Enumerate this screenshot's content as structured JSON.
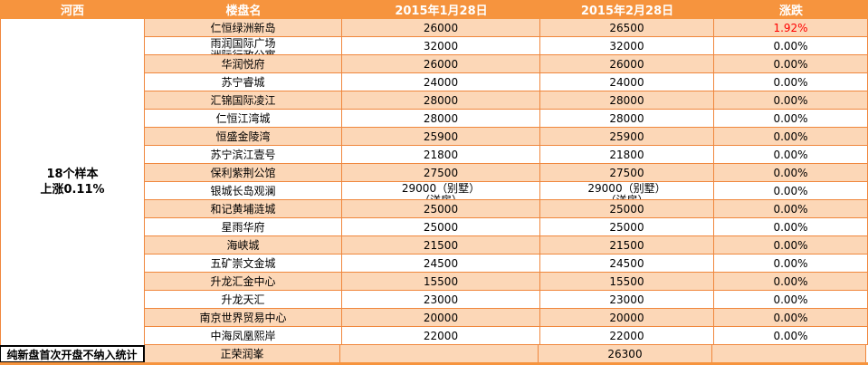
{
  "header": {
    "region": "河西",
    "name": "楼盘名",
    "jan": "2015年1月28日",
    "feb": "2015年2月28日",
    "change": "涨跌"
  },
  "region": {
    "summary_line1": "18个样本",
    "summary_line2": "上涨0.11%",
    "footnote": "纯新盘首次开盘不纳入统计"
  },
  "colors": {
    "header_orange": "#F6943E",
    "grid_orange": "#F0873D",
    "row_peach": "#FCD7B7",
    "row_white": "#FFFFFF",
    "change_up_red": "#FF0000",
    "header_text": "#FFFFFF",
    "body_text": "#000000"
  },
  "table": {
    "rows": [
      {
        "name": "仁恒绿洲新岛",
        "jan": "26000",
        "feb": "26500",
        "change": "1.92%",
        "change_up": true
      },
      {
        "name": "雨润国际广场",
        "name_line2": "洲际行政公寓",
        "jan": "32000",
        "feb": "32000",
        "change": "0.00%"
      },
      {
        "name": "华润悦府",
        "jan": "26000",
        "feb": "26000",
        "change": "0.00%"
      },
      {
        "name": "苏宁睿城",
        "jan": "24000",
        "feb": "24000",
        "change": "0.00%"
      },
      {
        "name": "汇锦国际凌江",
        "jan": "28000",
        "feb": "28000",
        "change": "0.00%"
      },
      {
        "name": "仁恒江湾城",
        "jan": "28000",
        "feb": "28000",
        "change": "0.00%"
      },
      {
        "name": "恒盛金陵湾",
        "jan": "25900",
        "feb": "25900",
        "change": "0.00%"
      },
      {
        "name": "苏宁滨江壹号",
        "jan": "21800",
        "feb": "21800",
        "change": "0.00%"
      },
      {
        "name": "保利紫荆公馆",
        "jan": "27500",
        "feb": "27500",
        "change": "0.00%"
      },
      {
        "name": "银城长岛观澜",
        "jan": "29000（别墅）",
        "jan_line2": "（洋房）",
        "feb": "29000（别墅）",
        "feb_line2": "（洋房）",
        "change": "0.00%"
      },
      {
        "name": "和记黄埔涟城",
        "jan": "25000",
        "feb": "25000",
        "change": "0.00%"
      },
      {
        "name": "星雨华府",
        "jan": "25000",
        "feb": "25000",
        "change": "0.00%"
      },
      {
        "name": "海峡城",
        "jan": "21500",
        "feb": "21500",
        "change": "0.00%"
      },
      {
        "name": "五矿崇文金城",
        "jan": "24500",
        "feb": "24500",
        "change": "0.00%"
      },
      {
        "name": "升龙汇金中心",
        "jan": "15500",
        "feb": "15500",
        "change": "0.00%"
      },
      {
        "name": "升龙天汇",
        "jan": "23000",
        "feb": "23000",
        "change": "0.00%"
      },
      {
        "name": "南京世界贸易中心",
        "jan": "20000",
        "feb": "20000",
        "change": "0.00%"
      },
      {
        "name": "中海凤凰熙岸",
        "jan": "22000",
        "feb": "22000",
        "change": "0.00%"
      }
    ],
    "footer_row": {
      "name": "正荣润峯",
      "jan": "",
      "feb": "26300",
      "change": ""
    }
  },
  "chart_data": {
    "type": "table",
    "region": "河西",
    "region_note": "18个样本 上涨0.11%",
    "footnote": "纯新盘首次开盘不纳入统计",
    "columns": [
      "楼盘名",
      "2015年1月28日",
      "2015年2月28日",
      "涨跌"
    ],
    "rows": [
      [
        "仁恒绿洲新岛",
        "26000",
        "26500",
        "1.92%"
      ],
      [
        "雨润国际广场洲际行政公寓",
        "32000",
        "32000",
        "0.00%"
      ],
      [
        "华润悦府",
        "26000",
        "26000",
        "0.00%"
      ],
      [
        "苏宁睿城",
        "24000",
        "24000",
        "0.00%"
      ],
      [
        "汇锦国际凌江",
        "28000",
        "28000",
        "0.00%"
      ],
      [
        "仁恒江湾城",
        "28000",
        "28000",
        "0.00%"
      ],
      [
        "恒盛金陵湾",
        "25900",
        "25900",
        "0.00%"
      ],
      [
        "苏宁滨江壹号",
        "21800",
        "21800",
        "0.00%"
      ],
      [
        "保利紫荆公馆",
        "27500",
        "27500",
        "0.00%"
      ],
      [
        "银城长岛观澜",
        "29000（别墅）",
        "29000（别墅）",
        "0.00%"
      ],
      [
        "和记黄埔涟城",
        "25000",
        "25000",
        "0.00%"
      ],
      [
        "星雨华府",
        "25000",
        "25000",
        "0.00%"
      ],
      [
        "海峡城",
        "21500",
        "21500",
        "0.00%"
      ],
      [
        "五矿崇文金城",
        "24500",
        "24500",
        "0.00%"
      ],
      [
        "升龙汇金中心",
        "15500",
        "15500",
        "0.00%"
      ],
      [
        "升龙天汇",
        "23000",
        "23000",
        "0.00%"
      ],
      [
        "南京世界贸易中心",
        "20000",
        "20000",
        "0.00%"
      ],
      [
        "中海凤凰熙岸",
        "22000",
        "22000",
        "0.00%"
      ],
      [
        "正荣润峯",
        "",
        "26300",
        ""
      ]
    ],
    "legend": null,
    "grid": true
  }
}
